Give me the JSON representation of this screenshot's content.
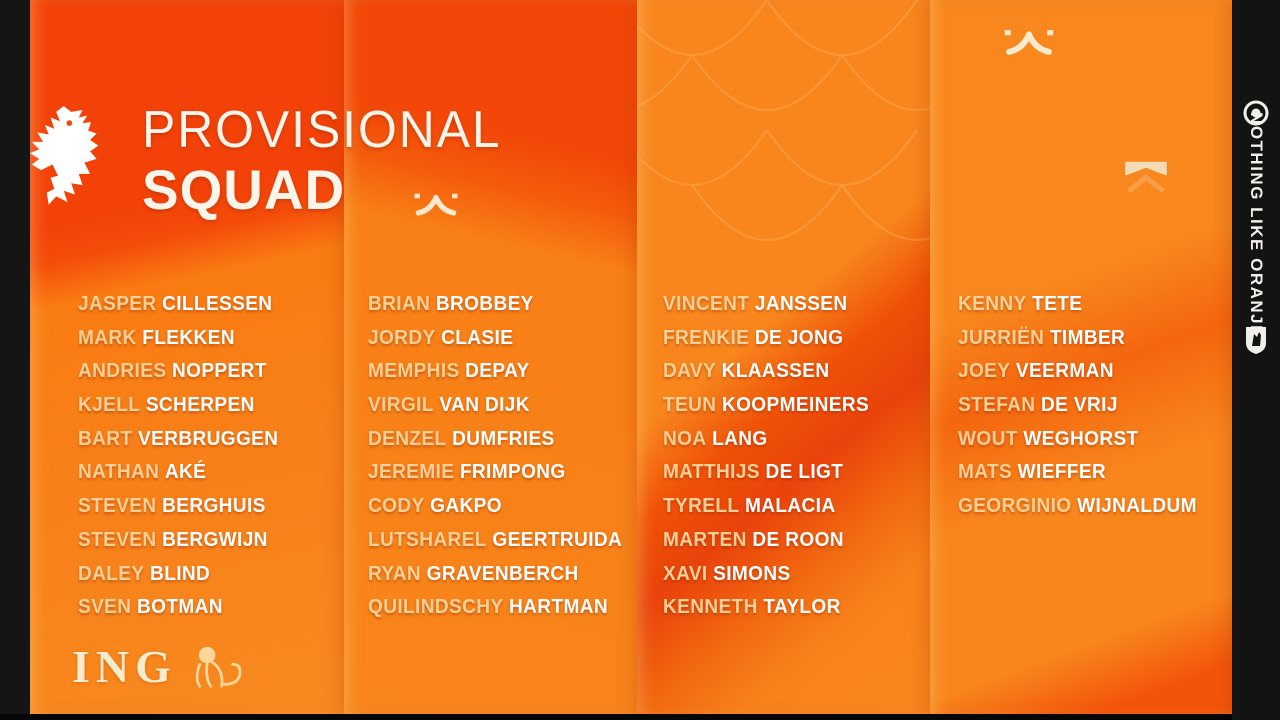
{
  "title": {
    "line1": "PROVISIONAL",
    "line2": "SQUAD"
  },
  "columns": [
    {
      "players": [
        {
          "first": "JASPER",
          "last": "CILLESSEN"
        },
        {
          "first": "MARK",
          "last": "FLEKKEN"
        },
        {
          "first": "ANDRIES",
          "last": "NOPPERT"
        },
        {
          "first": "KJELL",
          "last": "SCHERPEN"
        },
        {
          "first": "BART",
          "last": "VERBRUGGEN"
        },
        {
          "first": "NATHAN",
          "last": "AKÉ"
        },
        {
          "first": "STEVEN",
          "last": "BERGHUIS"
        },
        {
          "first": "STEVEN",
          "last": "BERGWIJN"
        },
        {
          "first": "DALEY",
          "last": "BLIND"
        },
        {
          "first": "SVEN",
          "last": "BOTMAN"
        }
      ]
    },
    {
      "players": [
        {
          "first": "BRIAN",
          "last": "BROBBEY"
        },
        {
          "first": "JORDY",
          "last": "CLASIE"
        },
        {
          "first": "MEMPHIS",
          "last": "DEPAY"
        },
        {
          "first": "VIRGIL",
          "last": "VAN DIJK"
        },
        {
          "first": "DENZEL",
          "last": "DUMFRIES"
        },
        {
          "first": "JEREMIE",
          "last": "FRIMPONG"
        },
        {
          "first": "CODY",
          "last": "GAKPO"
        },
        {
          "first": "LUTSHAREL",
          "last": "GEERTRUIDA"
        },
        {
          "first": "RYAN",
          "last": "GRAVENBERCH"
        },
        {
          "first": "QUILINDSCHY",
          "last": "HARTMAN"
        }
      ]
    },
    {
      "players": [
        {
          "first": "VINCENT",
          "last": "JANSSEN"
        },
        {
          "first": "FRENKIE",
          "last": "DE JONG"
        },
        {
          "first": "DAVY",
          "last": "KLAASSEN"
        },
        {
          "first": "TEUN",
          "last": "KOOPMEINERS"
        },
        {
          "first": "NOA",
          "last": "LANG"
        },
        {
          "first": "MATTHIJS",
          "last": "DE LIGT"
        },
        {
          "first": "TYRELL",
          "last": "MALACIA"
        },
        {
          "first": "MARTEN",
          "last": "DE ROON"
        },
        {
          "first": "XAVI",
          "last": "SIMONS"
        },
        {
          "first": "KENNETH",
          "last": "TAYLOR"
        }
      ]
    },
    {
      "players": [
        {
          "first": "KENNY",
          "last": "TETE"
        },
        {
          "first": "JURRIËN",
          "last": "TIMBER"
        },
        {
          "first": "JOEY",
          "last": "VEERMAN"
        },
        {
          "first": "STEFAN",
          "last": "DE VRIJ"
        },
        {
          "first": "WOUT",
          "last": "WEGHORST"
        },
        {
          "first": "MATS",
          "last": "WIEFFER"
        },
        {
          "first": "GEORGINIO",
          "last": "WIJNALDUM"
        }
      ]
    }
  ],
  "sidebar": {
    "slogan": "NOTHING LIKE ORANJE"
  },
  "sponsor": {
    "name": "ING"
  },
  "icons": [
    "knvb-lion-logo",
    "target-icon",
    "knvb-crest-icon",
    "crown-mark-icon",
    "flag-mark-icon",
    "ing-lion-icon"
  ],
  "colors": {
    "orange_panel": "#f8861d",
    "orange_bright": "#fb8d1d",
    "red_accent": "#f24208",
    "red_dark": "#e9430b",
    "first_name": "#fbd096",
    "last_name": "#ffffff",
    "cream_title": "#fbf4e8",
    "black_bar": "#131313"
  }
}
